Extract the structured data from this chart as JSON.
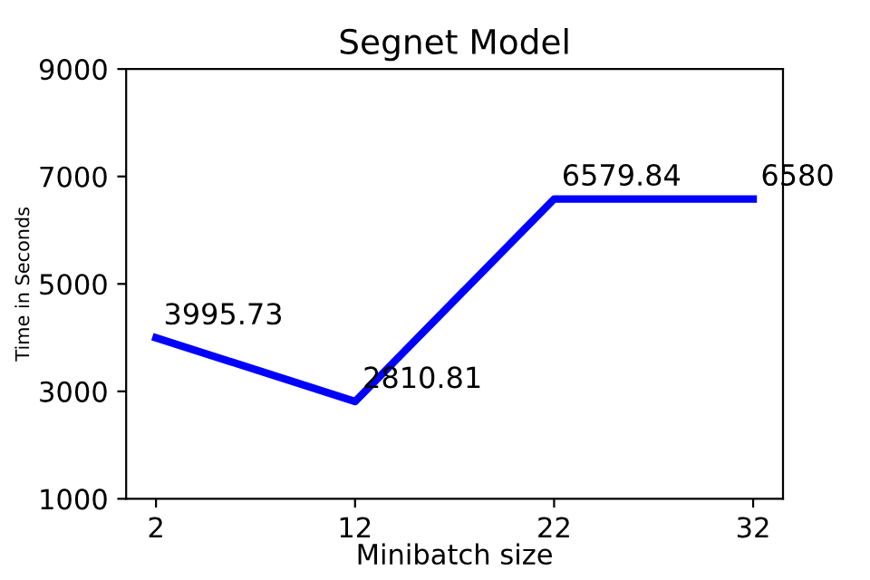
{
  "chart_data": {
    "type": "line",
    "title": "Segnet Model",
    "xlabel": "Minibatch size",
    "ylabel": "Time in Seconds",
    "x": [
      2,
      12,
      22,
      32
    ],
    "series": [
      {
        "color": "#0000ff",
        "values": [
          3995.73,
          2810.81,
          6579.84,
          6580
        ]
      }
    ],
    "data_labels": true,
    "xlim": [
      0.5,
      33.5
    ],
    "xticks": [
      2,
      12,
      22,
      32
    ],
    "ylim": [
      1000,
      9000
    ],
    "yticks": [
      1000,
      3000,
      5000,
      7000,
      9000
    ],
    "grid": false,
    "legend": false,
    "marker": "none",
    "line_style": "solid"
  }
}
